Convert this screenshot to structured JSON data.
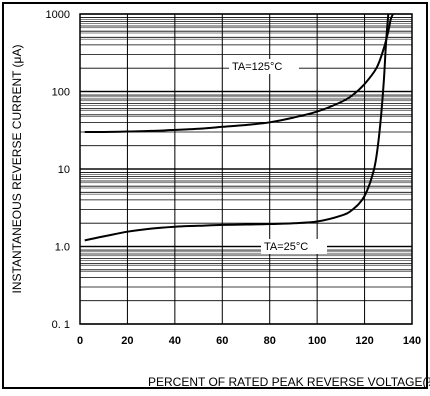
{
  "chart_data": {
    "type": "line",
    "xlabel": "PERCENT OF RATED PEAK REVERSE VOLTAGE(%)",
    "ylabel": "INSTANTANEOUS REVERSE CURRENT  (μA)",
    "x_scale": "linear",
    "y_scale": "log",
    "xlim": [
      0,
      140
    ],
    "ylim": [
      0.1,
      1000
    ],
    "grid": true,
    "x_ticks": [
      "0",
      "20",
      "40",
      "60",
      "80",
      "100",
      "120",
      "140"
    ],
    "y_ticks": [
      "0. 1",
      "1.0",
      "10",
      "100",
      "1000"
    ],
    "annotations": [
      {
        "text": "TA=125°C",
        "series": 0
      },
      {
        "text": "TA=25°C",
        "series": 1
      }
    ],
    "series": [
      {
        "name": "TA=125°C",
        "x": [
          2,
          10,
          20,
          30,
          40,
          50,
          60,
          70,
          80,
          90,
          100,
          110,
          115,
          120,
          125,
          128,
          130,
          131,
          132
        ],
        "y": [
          30,
          30,
          30.5,
          31,
          32,
          33,
          35,
          37,
          40,
          46,
          55,
          73,
          90,
          125,
          200,
          350,
          600,
          850,
          1000
        ]
      },
      {
        "name": "TA=25°C",
        "x": [
          2,
          10,
          20,
          30,
          40,
          50,
          60,
          70,
          80,
          90,
          100,
          110,
          115,
          120,
          124,
          126,
          128,
          129,
          130
        ],
        "y": [
          1.2,
          1.35,
          1.55,
          1.7,
          1.8,
          1.85,
          1.9,
          1.92,
          1.95,
          2.0,
          2.1,
          2.5,
          3.0,
          4.5,
          10,
          25,
          120,
          400,
          1000
        ]
      }
    ]
  }
}
